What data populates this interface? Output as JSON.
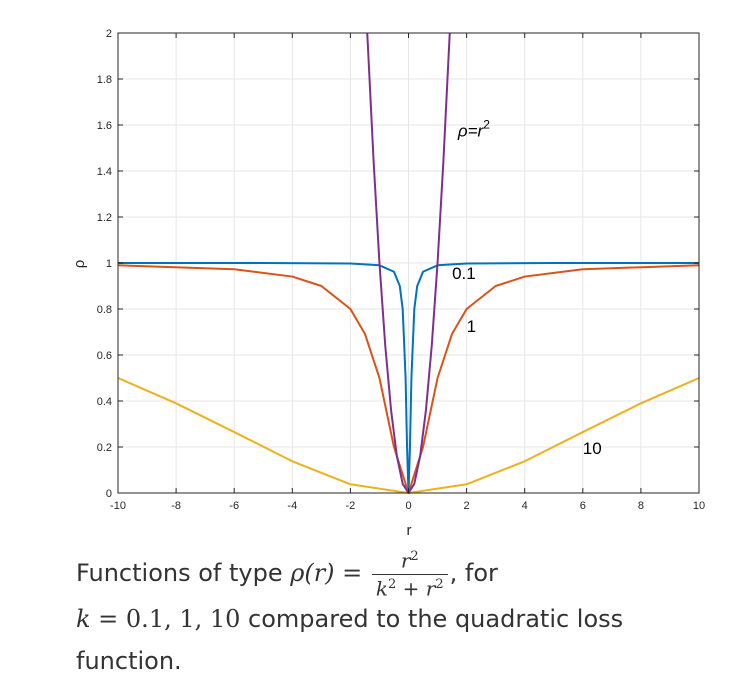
{
  "chart_data": {
    "type": "line",
    "xlabel": "r",
    "ylabel": "ρ",
    "xlim": [
      -10,
      10
    ],
    "ylim": [
      0,
      2
    ],
    "xticks": [
      "-10",
      "-8",
      "-6",
      "-4",
      "-2",
      "0",
      "2",
      "4",
      "6",
      "8",
      "10"
    ],
    "yticks": [
      "0",
      "0.2",
      "0.4",
      "0.6",
      "0.8",
      "1",
      "1.2",
      "1.4",
      "1.6",
      "1.8",
      "2"
    ],
    "grid": true,
    "function": "rho(r) = r^2 / (k^2 + r^2)",
    "series": [
      {
        "k": 0.1,
        "color": "#0072BD",
        "x": [
          -10,
          -5,
          -2,
          -1,
          -0.5,
          -0.3,
          -0.2,
          -0.1,
          -0.05,
          0,
          0.05,
          0.1,
          0.2,
          0.3,
          0.5,
          1,
          2,
          5,
          10
        ],
        "y": [
          1.0,
          1.0,
          0.998,
          0.99,
          0.962,
          0.9,
          0.8,
          0.5,
          0.2,
          0,
          0.2,
          0.5,
          0.8,
          0.9,
          0.962,
          0.99,
          0.998,
          1.0,
          1.0
        ]
      },
      {
        "k": 1,
        "color": "#D95319",
        "x": [
          -10,
          -6,
          -4,
          -3,
          -2,
          -1.5,
          -1,
          -0.5,
          0,
          0.5,
          1,
          1.5,
          2,
          3,
          4,
          6,
          10
        ],
        "y": [
          0.99,
          0.973,
          0.941,
          0.9,
          0.8,
          0.692,
          0.5,
          0.2,
          0,
          0.2,
          0.5,
          0.692,
          0.8,
          0.9,
          0.941,
          0.973,
          0.99
        ]
      },
      {
        "k": 10,
        "color": "#EDB120",
        "x": [
          -10,
          -8,
          -6,
          -4,
          -2,
          0,
          2,
          4,
          6,
          8,
          10
        ],
        "y": [
          0.5,
          0.39,
          0.265,
          0.138,
          0.038,
          0,
          0.038,
          0.138,
          0.265,
          0.39,
          0.5
        ]
      },
      {
        "name": "ρ=r²",
        "color": "#7E2F8E",
        "x": [
          -1.42,
          -1.2,
          -1,
          -0.8,
          -0.6,
          -0.4,
          -0.2,
          0,
          0.2,
          0.4,
          0.6,
          0.8,
          1,
          1.2,
          1.42
        ],
        "y": [
          2.0,
          1.44,
          1.0,
          0.64,
          0.36,
          0.16,
          0.04,
          0,
          0.04,
          0.16,
          0.36,
          0.64,
          1.0,
          1.44,
          2.0
        ]
      }
    ],
    "annotations": [
      {
        "text": "ρ=r",
        "sup": "2",
        "x": 1.7,
        "y": 1.55
      },
      {
        "text": "0.1",
        "x": 1.5,
        "y": 0.93
      },
      {
        "text": "1",
        "x": 2.0,
        "y": 0.7
      },
      {
        "text": "10",
        "x": 6.0,
        "y": 0.17
      }
    ]
  },
  "caption": {
    "line1_prefix": "Functions of type ",
    "rho_r": "ρ(r)",
    "equals": " = ",
    "num_base": "r",
    "num_exp": "2",
    "den_k": "k",
    "den_k_exp": "2",
    "den_plus": " + ",
    "den_r": "r",
    "den_r_exp": "2",
    "after_frac": ", for",
    "k_var": "k",
    "k_values": " = 0.1, 1, 10",
    "line2_suffix": " compared to the quadratic loss function."
  }
}
